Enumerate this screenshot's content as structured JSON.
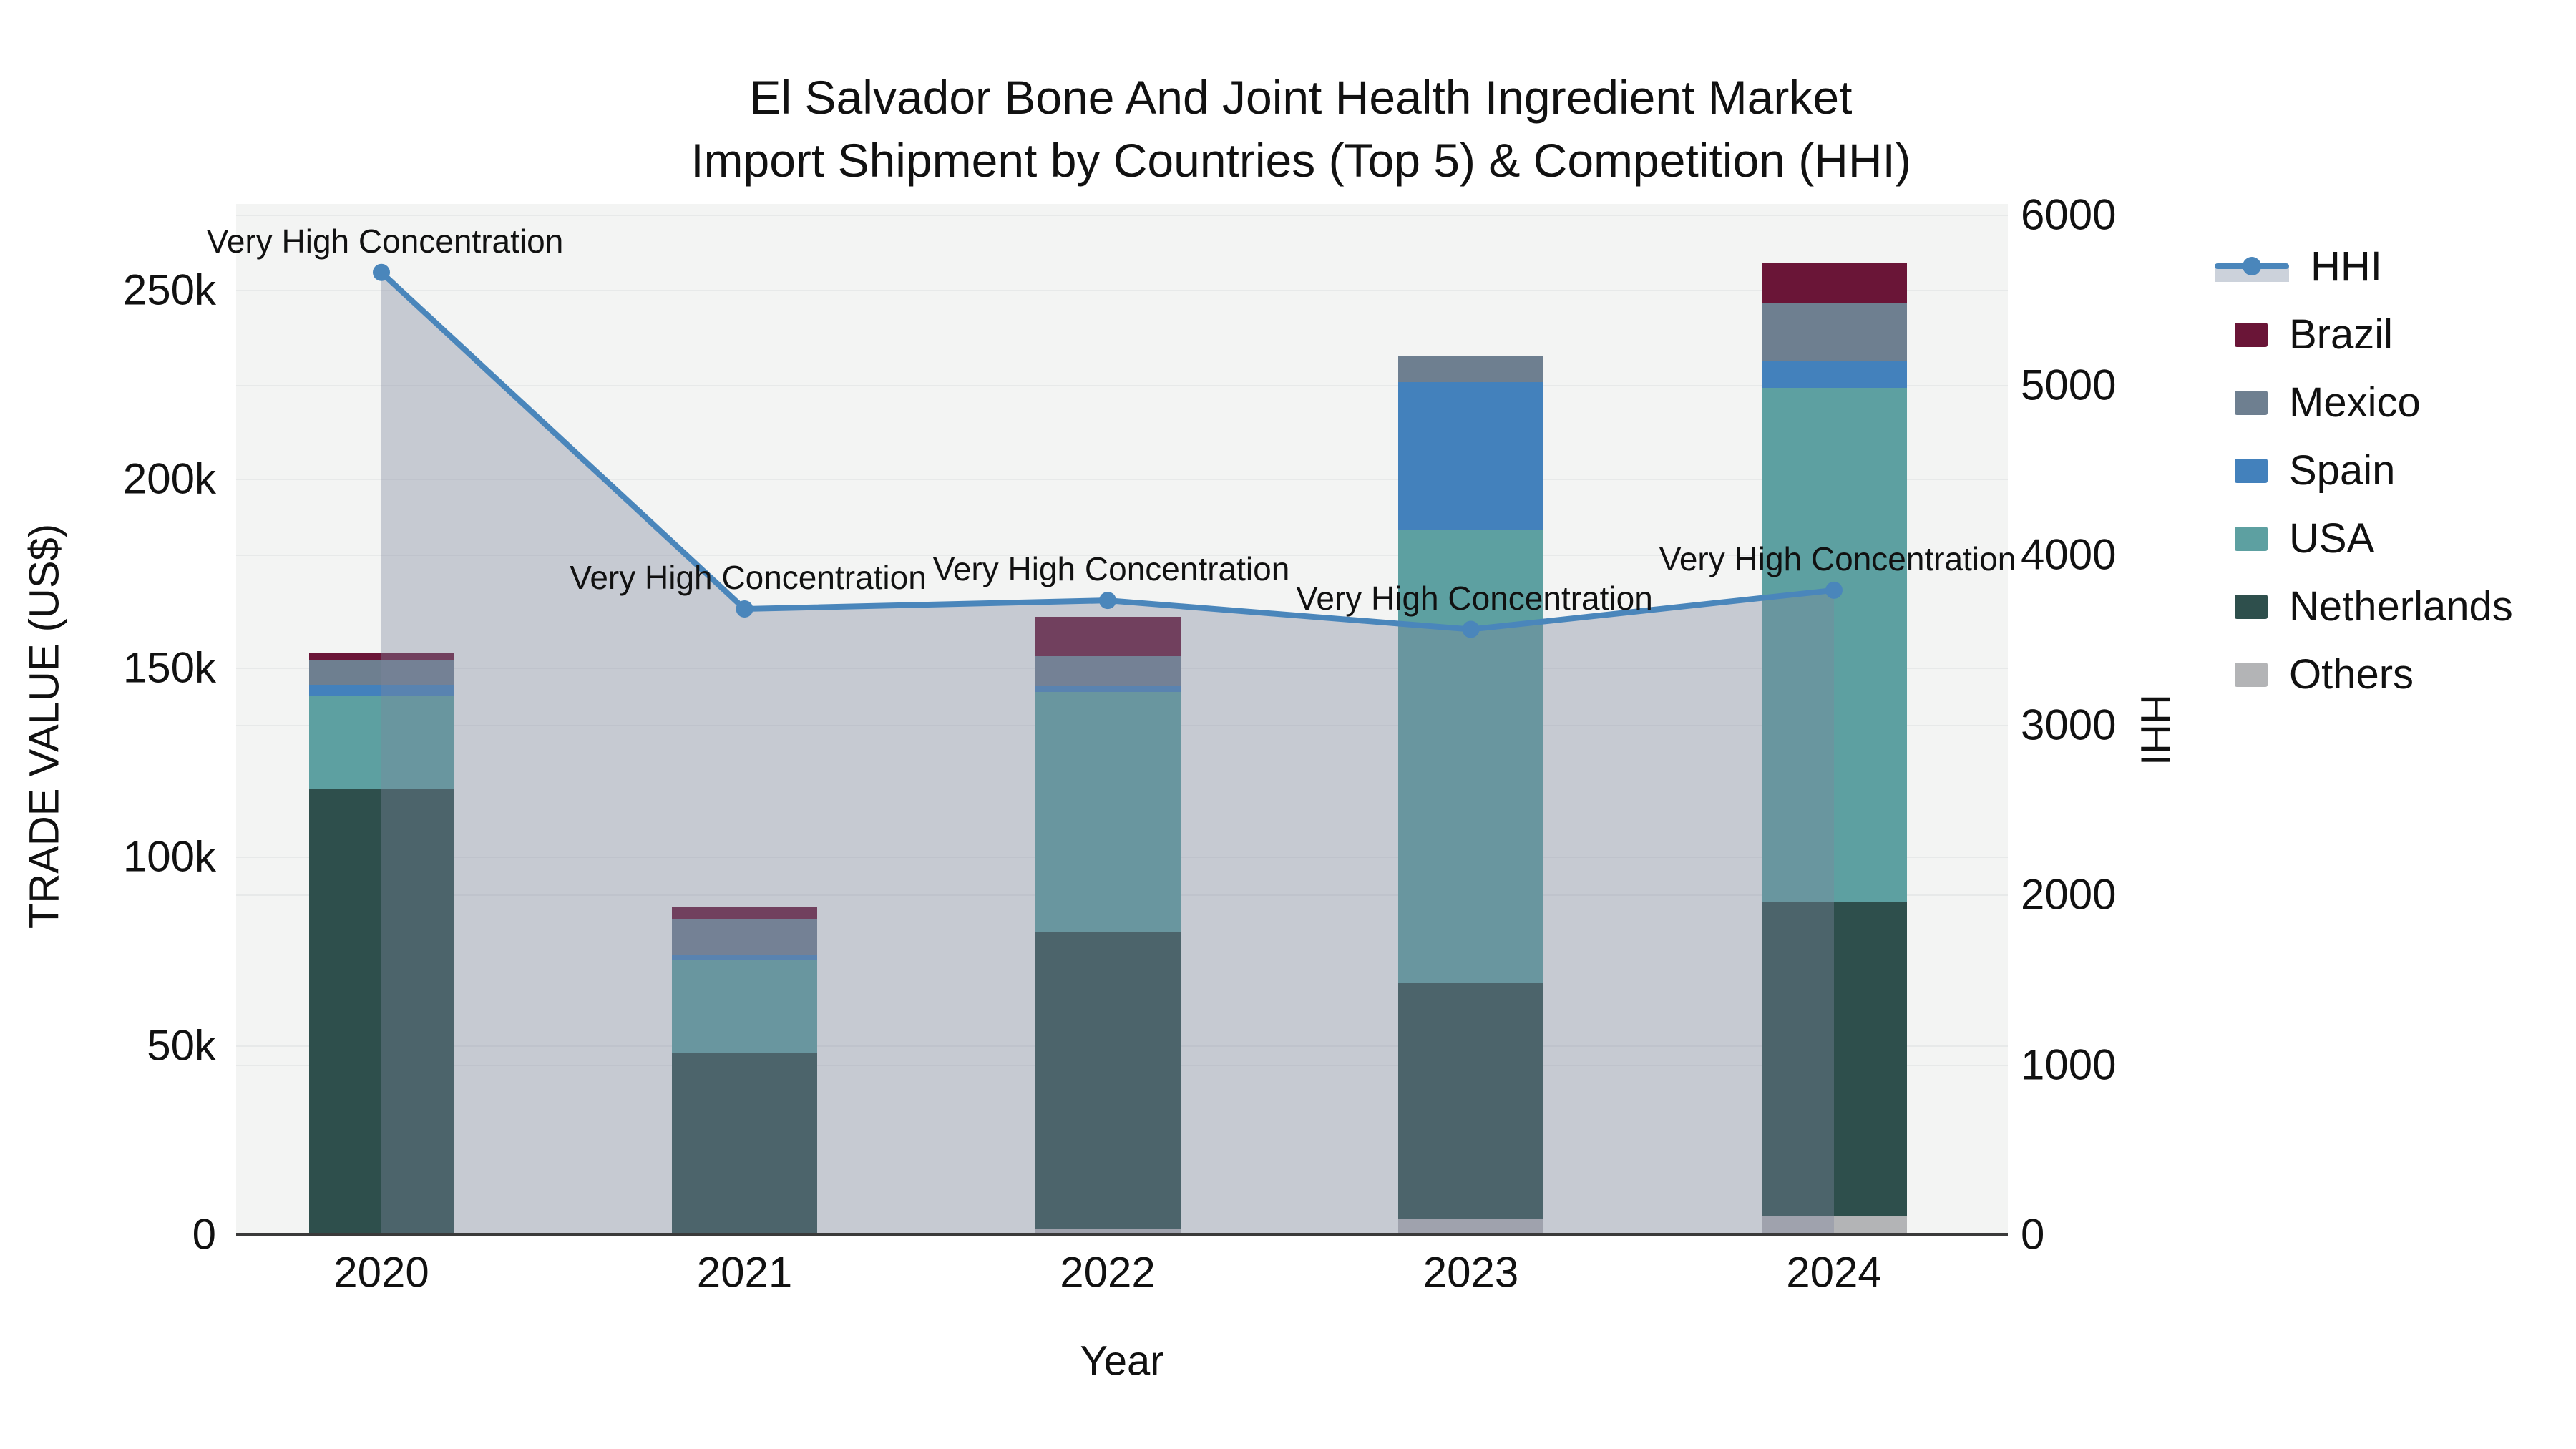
{
  "title": {
    "line1": "El Salvador Bone And Joint Health Ingredient Market",
    "line2": "Import Shipment by Countries (Top 5) & Competition (HHI)"
  },
  "axes": {
    "x_title": "Year",
    "y_left_title": "TRADE VALUE (US$)",
    "y_right_title": "HHI",
    "y_left_ticks": [
      "0",
      "50k",
      "100k",
      "150k",
      "200k",
      "250k"
    ],
    "y_right_ticks": [
      "0",
      "1000",
      "2000",
      "3000",
      "4000",
      "5000",
      "6000"
    ],
    "x_ticks": [
      "2020",
      "2021",
      "2022",
      "2023",
      "2024"
    ]
  },
  "legend": {
    "items": [
      {
        "label": "HHI",
        "type": "line",
        "color": "#4a86bb"
      },
      {
        "label": "Brazil",
        "type": "bar",
        "color": "#6a1537"
      },
      {
        "label": "Mexico",
        "type": "bar",
        "color": "#6e7f90"
      },
      {
        "label": "Spain",
        "type": "bar",
        "color": "#4381bc"
      },
      {
        "label": "USA",
        "type": "bar",
        "color": "#5da0a1"
      },
      {
        "label": "Netherlands",
        "type": "bar",
        "color": "#2e4f4c"
      },
      {
        "label": "Others",
        "type": "bar",
        "color": "#b3b4b6"
      }
    ]
  },
  "annotation_text": "Very High Concentration",
  "chart_data": {
    "type": "bar+line",
    "title": "El Salvador Bone And Joint Health Ingredient Market Import Shipment by Countries (Top 5) & Competition (HHI)",
    "xlabel": "Year",
    "ylabel_left": "TRADE VALUE (US$)",
    "ylabel_right": "HHI",
    "categories": [
      "2020",
      "2021",
      "2022",
      "2023",
      "2024"
    ],
    "bar_stack_order_bottom_to_top": [
      "Others",
      "Netherlands",
      "USA",
      "Spain",
      "Mexico",
      "Brazil"
    ],
    "series": [
      {
        "name": "Others",
        "type": "bar",
        "color": "#b3b4b6",
        "values_usd_thousands": [
          0,
          0,
          1.5,
          4,
          5
        ]
      },
      {
        "name": "Netherlands",
        "type": "bar",
        "color": "#2e4f4c",
        "values_usd_thousands": [
          118,
          48,
          78.5,
          62.5,
          83
        ]
      },
      {
        "name": "USA",
        "type": "bar",
        "color": "#5da0a1",
        "values_usd_thousands": [
          24.5,
          24.5,
          63.5,
          120,
          136
        ]
      },
      {
        "name": "Spain",
        "type": "bar",
        "color": "#4381bc",
        "values_usd_thousands": [
          3,
          1.5,
          1.5,
          39,
          7
        ]
      },
      {
        "name": "Mexico",
        "type": "bar",
        "color": "#6e7f90",
        "values_usd_thousands": [
          6.5,
          9.5,
          8,
          7,
          15.5
        ]
      },
      {
        "name": "Brazil",
        "type": "bar",
        "color": "#6a1537",
        "values_usd_thousands": [
          2,
          3,
          10.5,
          0,
          10.5
        ]
      }
    ],
    "totals_usd_thousands": [
      154,
      86.5,
      163.5,
      232.5,
      257
    ],
    "hhi_line": {
      "name": "HHI",
      "type": "line",
      "color": "#4a86bb",
      "area_fill": "rgba(125,135,158,0.38)",
      "values": [
        5660,
        3680,
        3730,
        3560,
        3790
      ],
      "point_labels": [
        "Very High Concentration",
        "Very High Concentration",
        "Very High Concentration",
        "Very High Concentration",
        "Very High Concentration"
      ]
    },
    "y_left_range_usd": [
      0,
      272000
    ],
    "y_right_range_hhi": [
      0,
      6060
    ],
    "grid": true,
    "legend_position": "right"
  }
}
